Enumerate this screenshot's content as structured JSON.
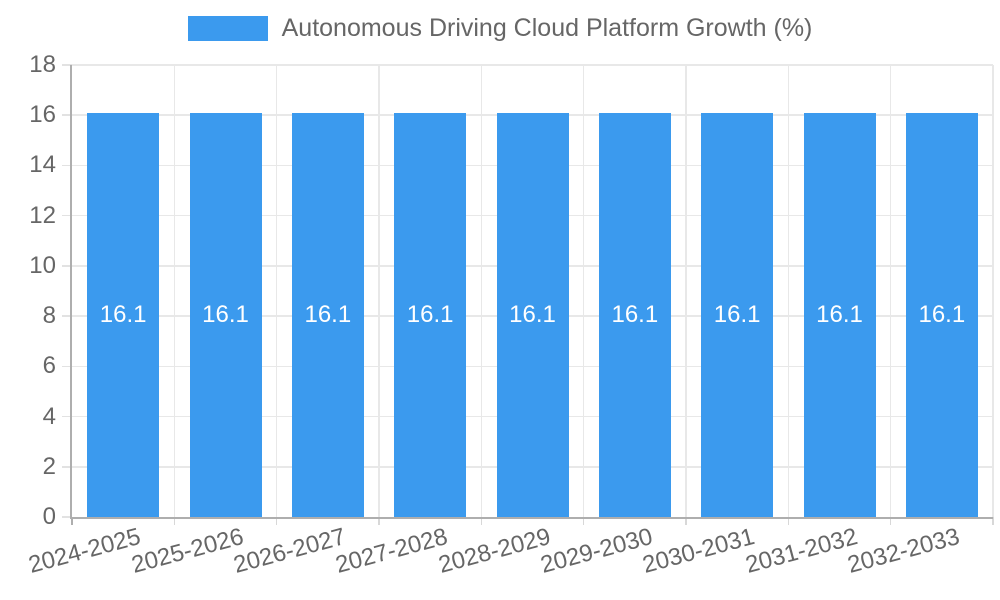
{
  "chart_data": {
    "type": "bar",
    "legend_label": "Autonomous Driving Cloud Platform Growth (%)",
    "legend_position": "top",
    "categories": [
      "2024-2025",
      "2025-2026",
      "2026-2027",
      "2027-2028",
      "2028-2029",
      "2029-2030",
      "2030-2031",
      "2031-2032",
      "2032-2033"
    ],
    "values": [
      16.1,
      16.1,
      16.1,
      16.1,
      16.1,
      16.1,
      16.1,
      16.1,
      16.1
    ],
    "value_labels": [
      "16.1",
      "16.1",
      "16.1",
      "16.1",
      "16.1",
      "16.1",
      "16.1",
      "16.1",
      "16.1"
    ],
    "ylim": [
      0,
      18
    ],
    "yticks": [
      0,
      2,
      4,
      6,
      8,
      10,
      12,
      14,
      16,
      18
    ],
    "xlabel": "",
    "ylabel": "",
    "grid": true,
    "colors": {
      "bar": "#3b9aee",
      "text": "#666666",
      "grid": "#e8e8e8",
      "axis": "#aeaeae",
      "bar_label": "#ffffff",
      "background": "#ffffff"
    }
  }
}
